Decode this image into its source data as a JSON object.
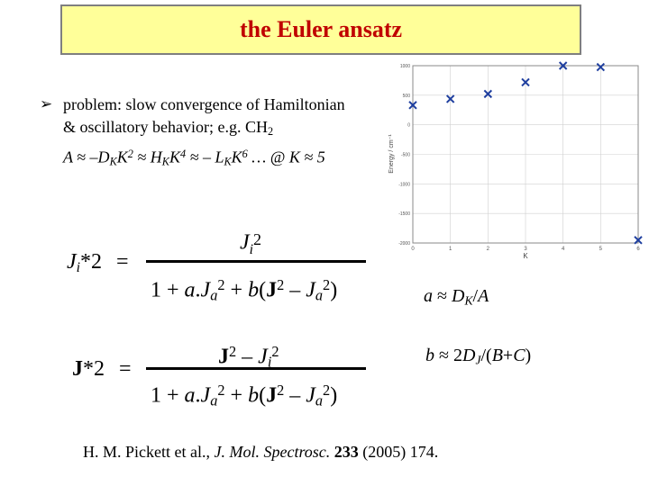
{
  "title": "the Euler ansatz",
  "bullet": {
    "line1": "problem: slow convergence of Hamiltonian",
    "line2_text": "& oscillatory behavior; e.g.  CH",
    "line2_sub": "2",
    "line3": [
      {
        "t": "A ≈ –D",
        "s": ""
      },
      {
        "t": "K",
        "s": "sub"
      },
      {
        "t": "K",
        "s": ""
      },
      {
        "t": "2",
        "s": "sup"
      },
      {
        "t": " ≈ H",
        "s": ""
      },
      {
        "t": "K",
        "s": "sub"
      },
      {
        "t": "K",
        "s": ""
      },
      {
        "t": "4",
        "s": "sup"
      },
      {
        "t": " ≈ – L",
        "s": ""
      },
      {
        "t": "K",
        "s": "sub"
      },
      {
        "t": "K",
        "s": ""
      },
      {
        "t": "6",
        "s": "sup"
      },
      {
        "t": " …  @  K ≈ 5",
        "s": ""
      }
    ]
  },
  "eq1": {
    "lhs": {
      "J": "J",
      "sub": "i",
      "sup": "*2",
      "eq": "="
    },
    "num": {
      "J": "J",
      "sub": "i",
      "sup": "2"
    },
    "den": [
      {
        "t": "1 + ",
        "s": ""
      },
      {
        "t": "a",
        "s": "it"
      },
      {
        "t": ".",
        "s": ""
      },
      {
        "t": "J",
        "s": "it"
      },
      {
        "t": "a",
        "s": "itsub"
      },
      {
        "t": "2",
        "s": "sup"
      },
      {
        "t": " + ",
        "s": ""
      },
      {
        "t": "b",
        "s": "it"
      },
      {
        "t": "(",
        "s": ""
      },
      {
        "t": "J",
        "s": "b"
      },
      {
        "t": "2",
        "s": "sup"
      },
      {
        "t": " – ",
        "s": ""
      },
      {
        "t": "J",
        "s": "it"
      },
      {
        "t": "a",
        "s": "itsub"
      },
      {
        "t": "2",
        "s": "sup"
      },
      {
        "t": ")",
        "s": ""
      }
    ]
  },
  "eq2": {
    "lhs": {
      "J": "J",
      "sup": "*2",
      "eq": "="
    },
    "num": [
      {
        "t": "J",
        "s": "b"
      },
      {
        "t": "2",
        "s": "sup"
      },
      {
        "t": " – ",
        "s": ""
      },
      {
        "t": "J",
        "s": "it"
      },
      {
        "t": "i",
        "s": "itsub"
      },
      {
        "t": "2",
        "s": "sup"
      }
    ],
    "den": [
      {
        "t": "1 + ",
        "s": ""
      },
      {
        "t": "a",
        "s": "it"
      },
      {
        "t": ".",
        "s": ""
      },
      {
        "t": "J",
        "s": "it"
      },
      {
        "t": "a",
        "s": "itsub"
      },
      {
        "t": "2",
        "s": "sup"
      },
      {
        "t": " + ",
        "s": ""
      },
      {
        "t": "b",
        "s": "it"
      },
      {
        "t": "(",
        "s": ""
      },
      {
        "t": "J",
        "s": "b"
      },
      {
        "t": "2",
        "s": "sup"
      },
      {
        "t": " – ",
        "s": ""
      },
      {
        "t": "J",
        "s": "it"
      },
      {
        "t": "a",
        "s": "itsub"
      },
      {
        "t": "2",
        "s": "sup"
      },
      {
        "t": ")",
        "s": ""
      }
    ]
  },
  "side_a": [
    {
      "t": "a",
      "s": "it"
    },
    {
      "t": " ≈ ",
      "s": ""
    },
    {
      "t": "D",
      "s": "it"
    },
    {
      "t": "K",
      "s": "itsub"
    },
    {
      "t": "/",
      "s": ""
    },
    {
      "t": "A",
      "s": "it"
    }
  ],
  "side_b": [
    {
      "t": "b",
      "s": "it"
    },
    {
      "t": " ≈ 2",
      "s": ""
    },
    {
      "t": "D",
      "s": "it"
    },
    {
      "t": "J",
      "s": "itsub"
    },
    {
      "t": "/(",
      "s": ""
    },
    {
      "t": "B",
      "s": "it"
    },
    {
      "t": "+",
      "s": ""
    },
    {
      "t": "C",
      "s": "it"
    },
    {
      "t": ")",
      "s": ""
    }
  ],
  "citation": {
    "authors": "H. M. Pickett et al., ",
    "journal": "J. Mol. Spectrosc.",
    "volume": " 233",
    "rest": " (2005) 174."
  },
  "chart_data": {
    "type": "scatter",
    "xlabel": "K",
    "ylabel": "Energy / cm⁻¹",
    "xlim": [
      0,
      6
    ],
    "ylim": [
      -2000,
      1000
    ],
    "xticks": [
      "0",
      "1",
      "2",
      "3",
      "4",
      "5",
      "6"
    ],
    "yticks": [
      "1000",
      "500",
      "0",
      "-500",
      "-1000",
      "-1500",
      "-2000"
    ],
    "grid": true,
    "marker": "x",
    "color": "#1f3f9f",
    "x": [
      0,
      1,
      2,
      3,
      4,
      5,
      6
    ],
    "y": [
      333,
      438,
      522,
      719,
      1000,
      976,
      -1952
    ]
  }
}
